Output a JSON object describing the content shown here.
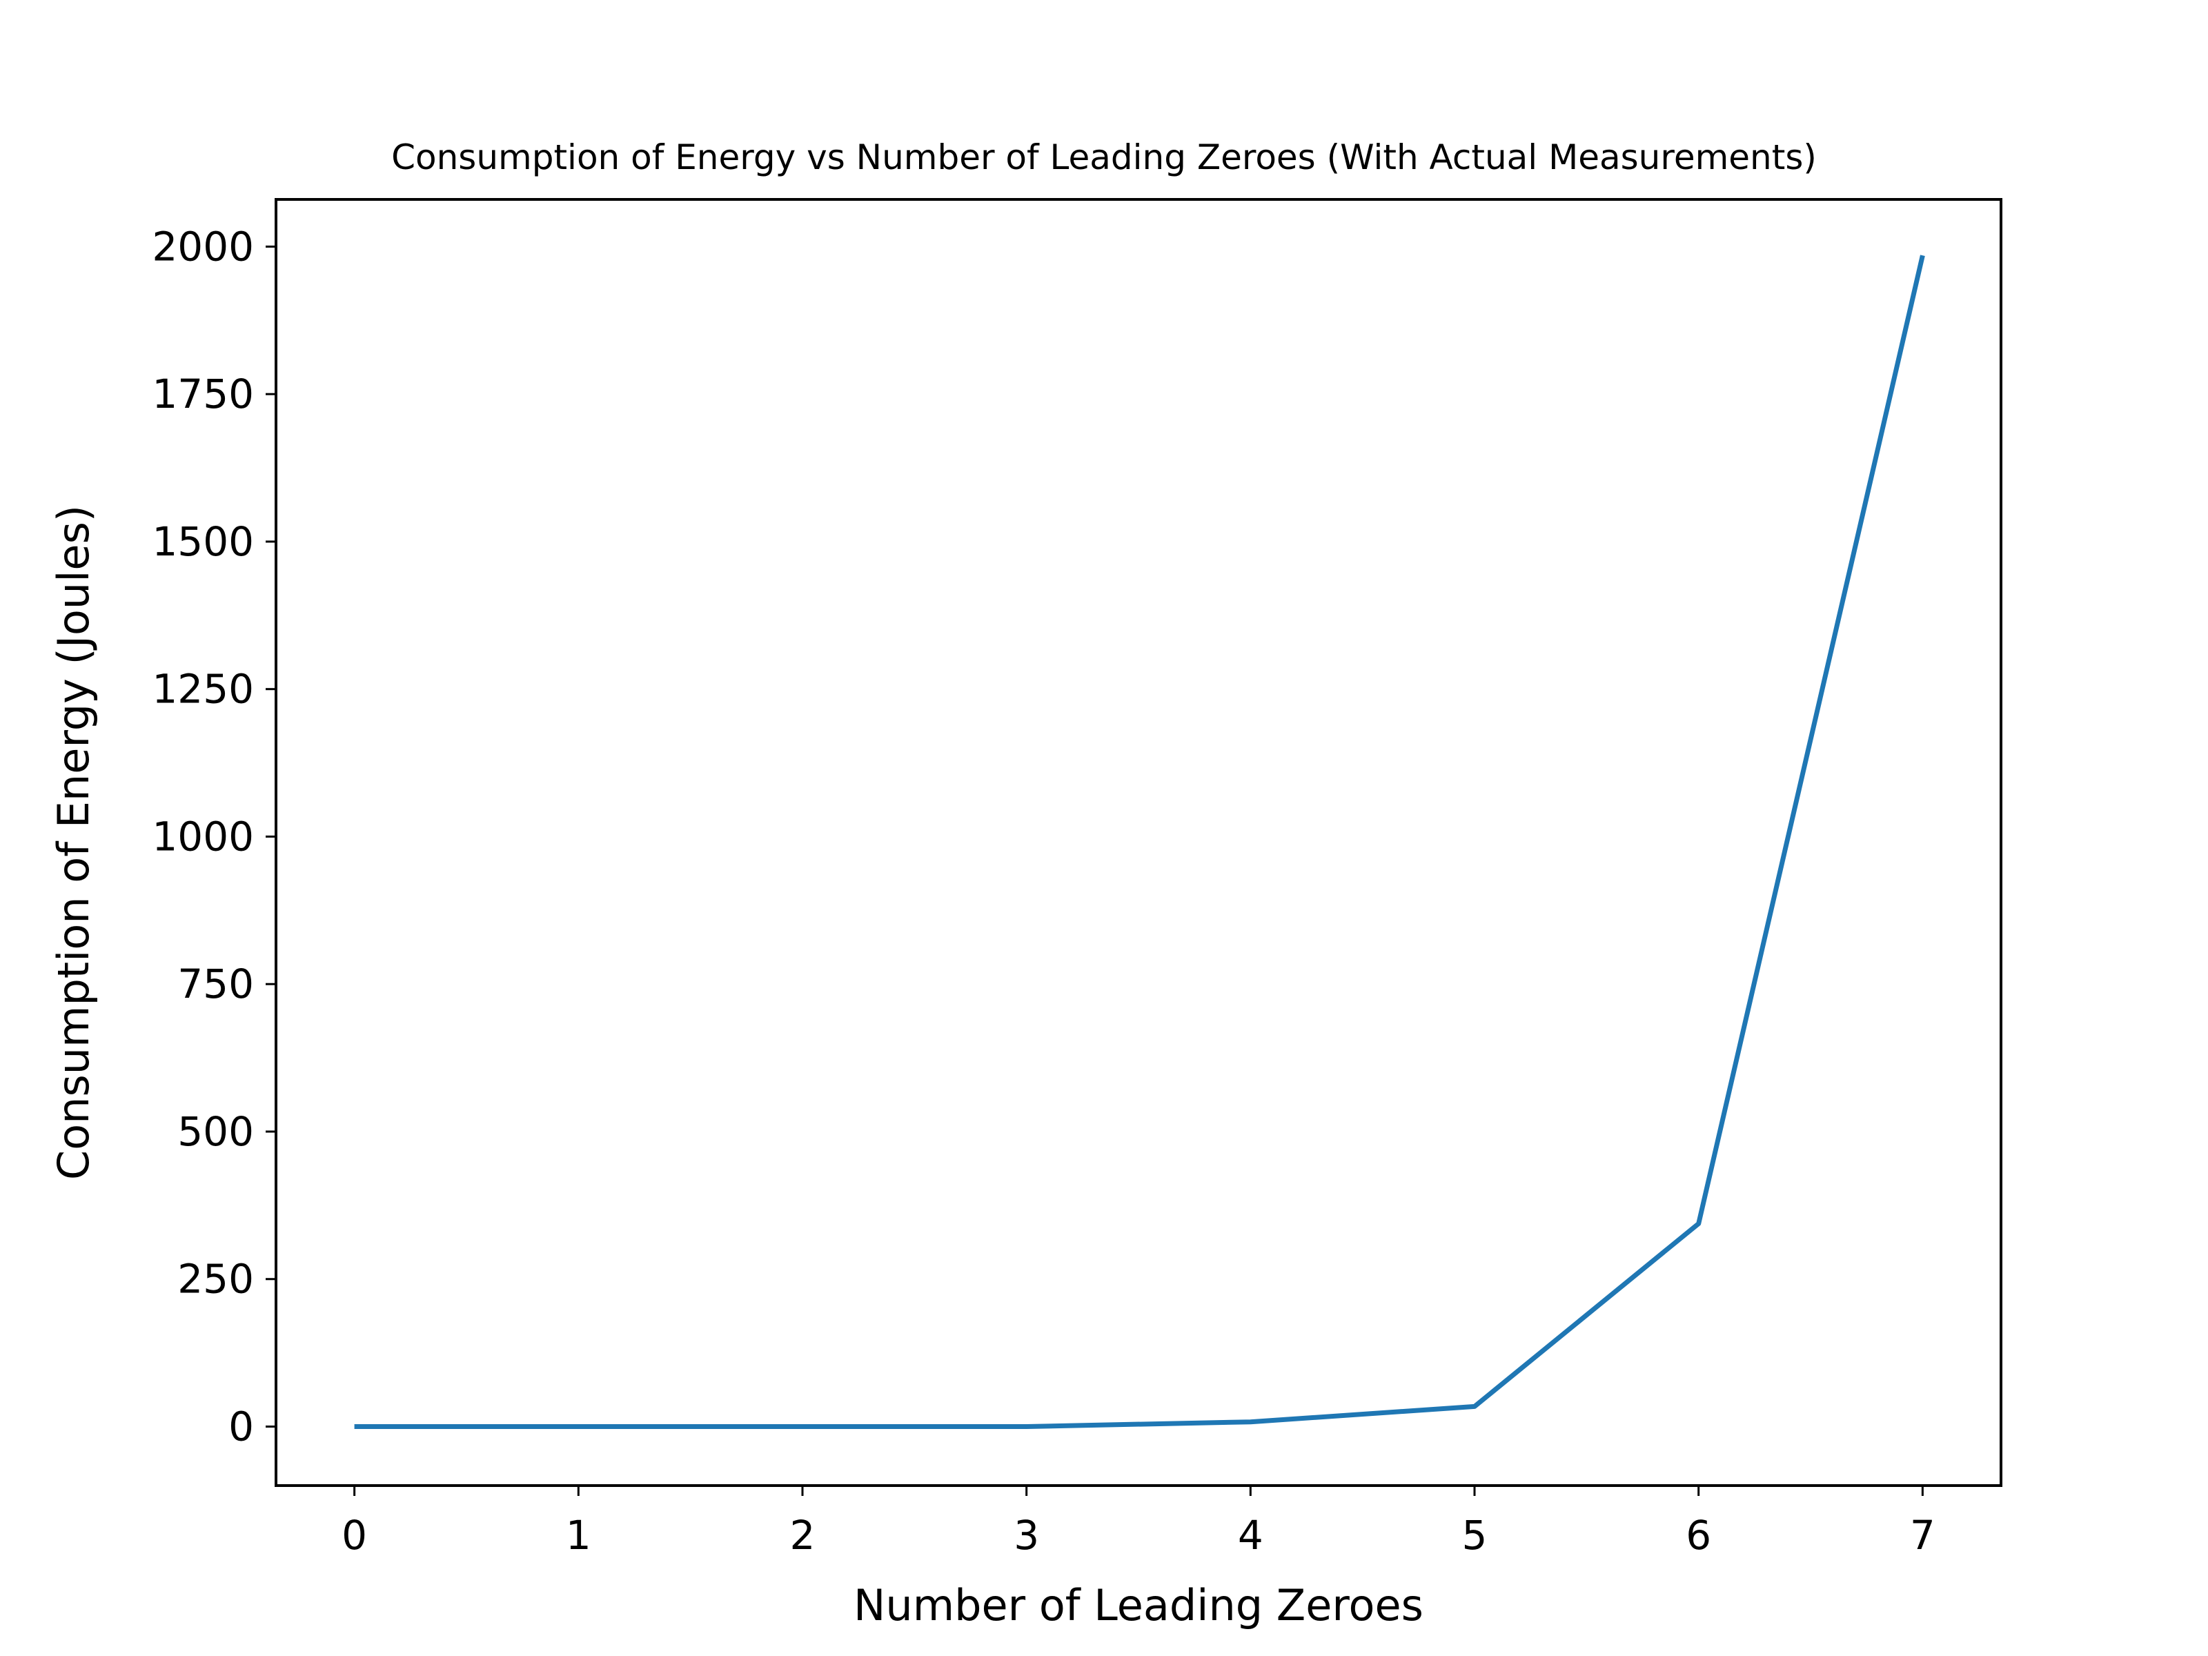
{
  "chart_data": {
    "type": "line",
    "title": "Consumption of Energy vs Number of Leading Zeroes (With Actual Measurements)",
    "xlabel": "Number of Leading Zeroes",
    "ylabel": "Consumption of Energy (Joules)",
    "x": [
      0,
      1,
      2,
      3,
      4,
      5,
      6,
      7
    ],
    "series": [
      {
        "values": [
          0,
          0,
          0,
          0,
          8,
          34,
          344,
          1985
        ]
      }
    ],
    "xlim": [
      -0.35,
      7.35
    ],
    "ylim": [
      -100,
      2080
    ],
    "xticks": [
      0,
      1,
      2,
      3,
      4,
      5,
      6,
      7
    ],
    "yticks": [
      0,
      250,
      500,
      750,
      1000,
      1250,
      1500,
      1750,
      2000
    ],
    "grid": false,
    "legend": "none",
    "colors": {
      "line": "#1f77b4",
      "axes": "#000000"
    }
  }
}
